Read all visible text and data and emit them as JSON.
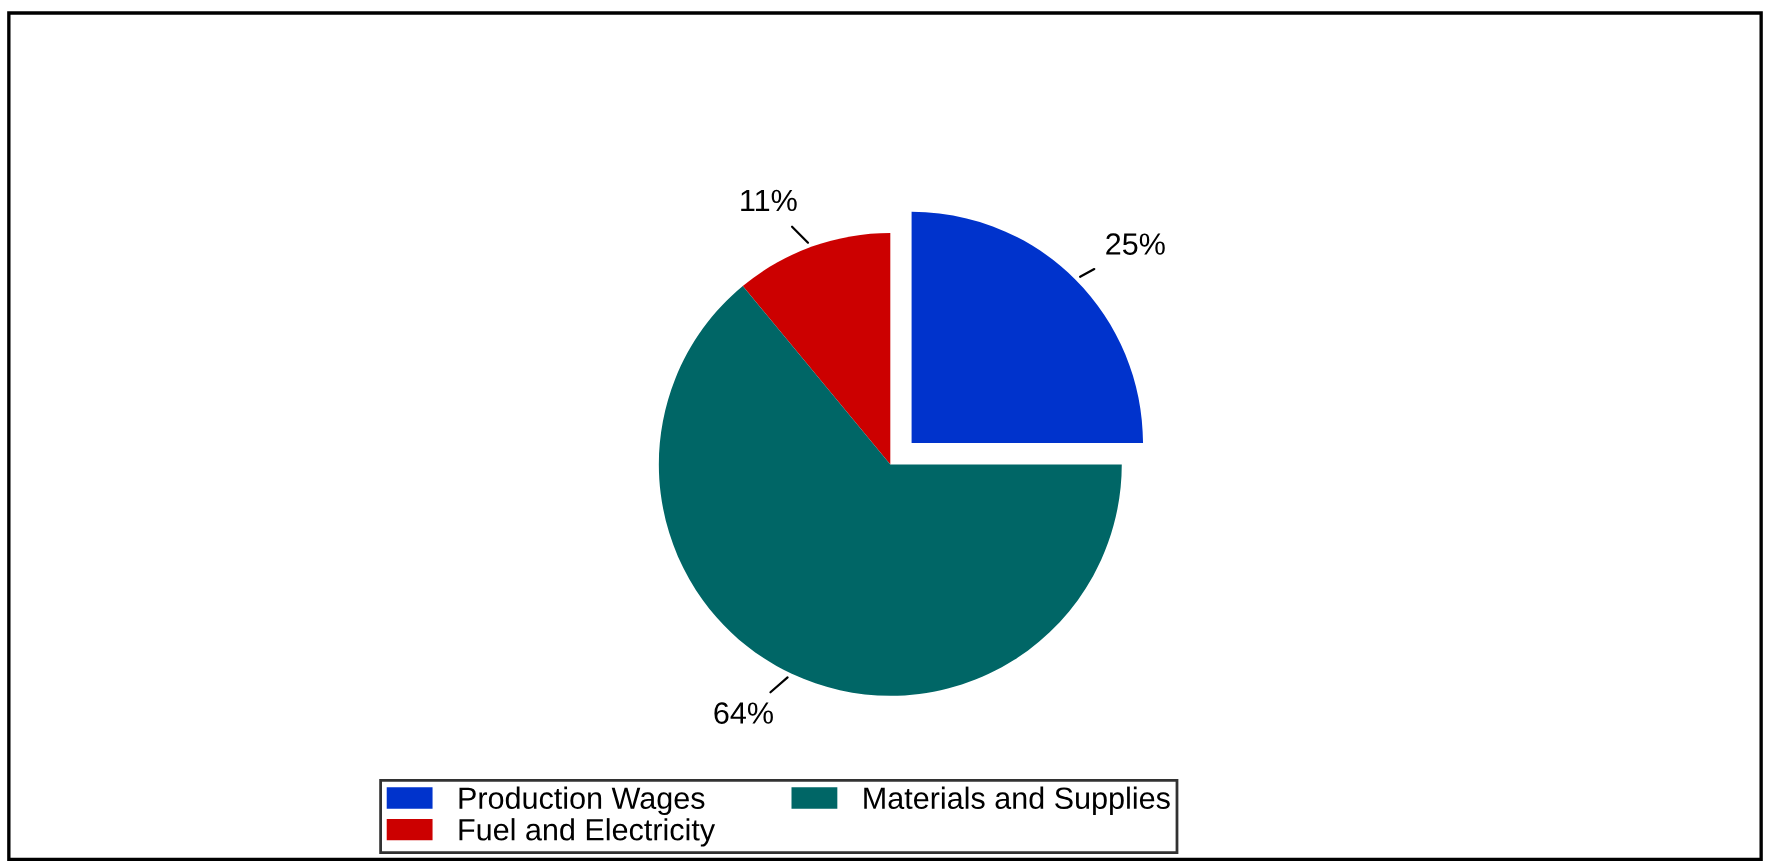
{
  "chart_data": {
    "type": "pie",
    "categories": [
      "Production Wages",
      "Fuel and Electricity",
      "Materials and Supplies"
    ],
    "values": [
      25,
      11,
      64
    ],
    "colors": [
      "#0033cc",
      "#cc0000",
      "#006666"
    ],
    "value_labels": [
      "25%",
      "11%",
      "64%"
    ],
    "legend": "bottom"
  }
}
